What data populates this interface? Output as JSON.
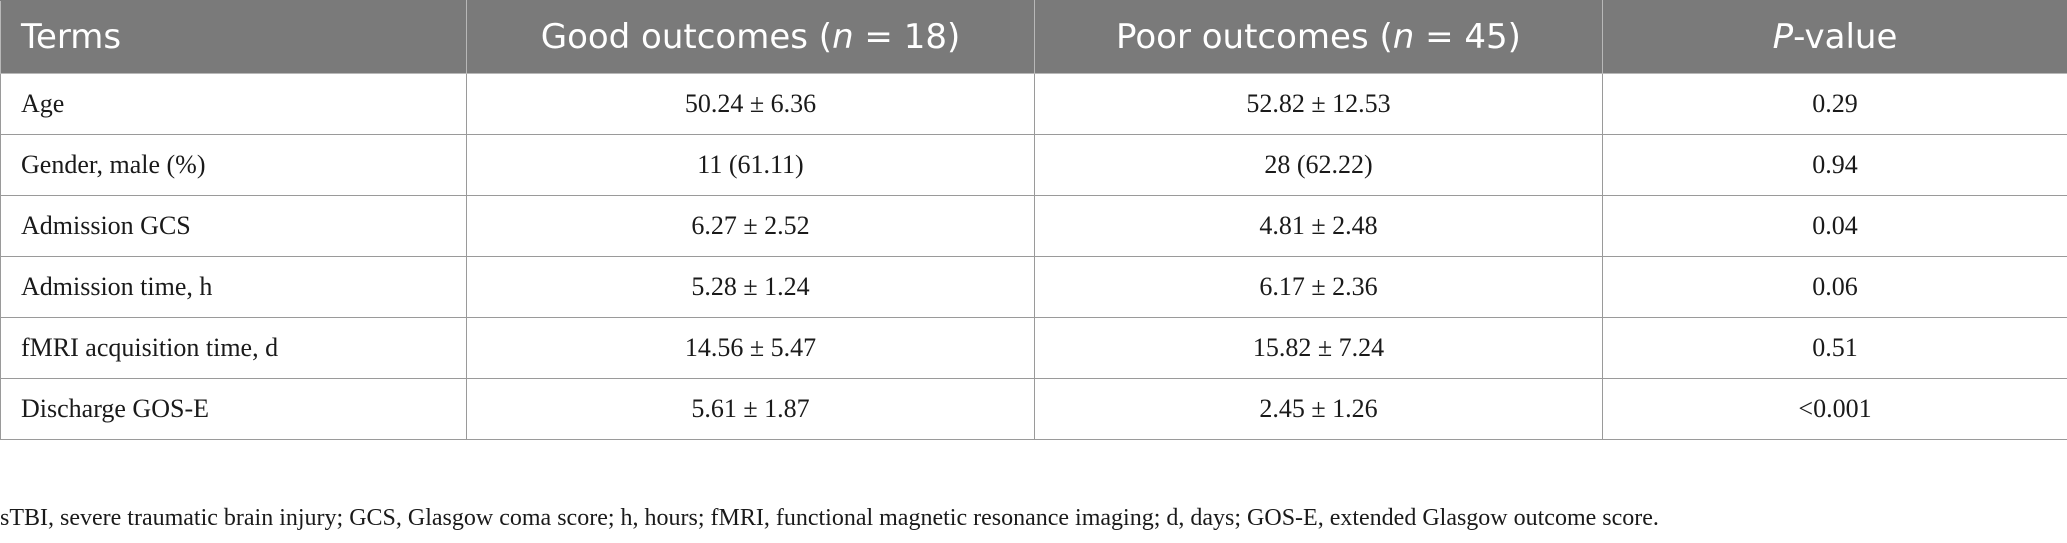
{
  "table": {
    "headers": [
      {
        "pre": "Terms",
        "ital": "",
        "post": ""
      },
      {
        "pre": "Good outcomes (",
        "ital": "n",
        "post": " = 18)"
      },
      {
        "pre": "Poor outcomes (",
        "ital": "n",
        "post": " = 45)"
      },
      {
        "pre": "",
        "ital": "P",
        "post": "-value"
      }
    ],
    "rows": [
      [
        "Age",
        "50.24 ± 6.36",
        "52.82 ± 12.53",
        "0.29"
      ],
      [
        "Gender, male (%)",
        "11 (61.11)",
        "28 (62.22)",
        "0.94"
      ],
      [
        "Admission GCS",
        "6.27 ± 2.52",
        "4.81 ± 2.48",
        "0.04"
      ],
      [
        "Admission time, h",
        "5.28 ± 1.24",
        "6.17 ± 2.36",
        "0.06"
      ],
      [
        "fMRI acquisition time, d",
        "14.56 ± 5.47",
        "15.82 ± 7.24",
        "0.51"
      ],
      [
        "Discharge GOS-E",
        "5.61 ± 1.87",
        "2.45 ± 1.26",
        "<0.001"
      ]
    ]
  },
  "footnote": "sTBI, severe traumatic brain injury; GCS, Glasgow coma score; h, hours; fMRI, functional magnetic resonance imaging; d, days; GOS-E, extended Glasgow outcome score."
}
